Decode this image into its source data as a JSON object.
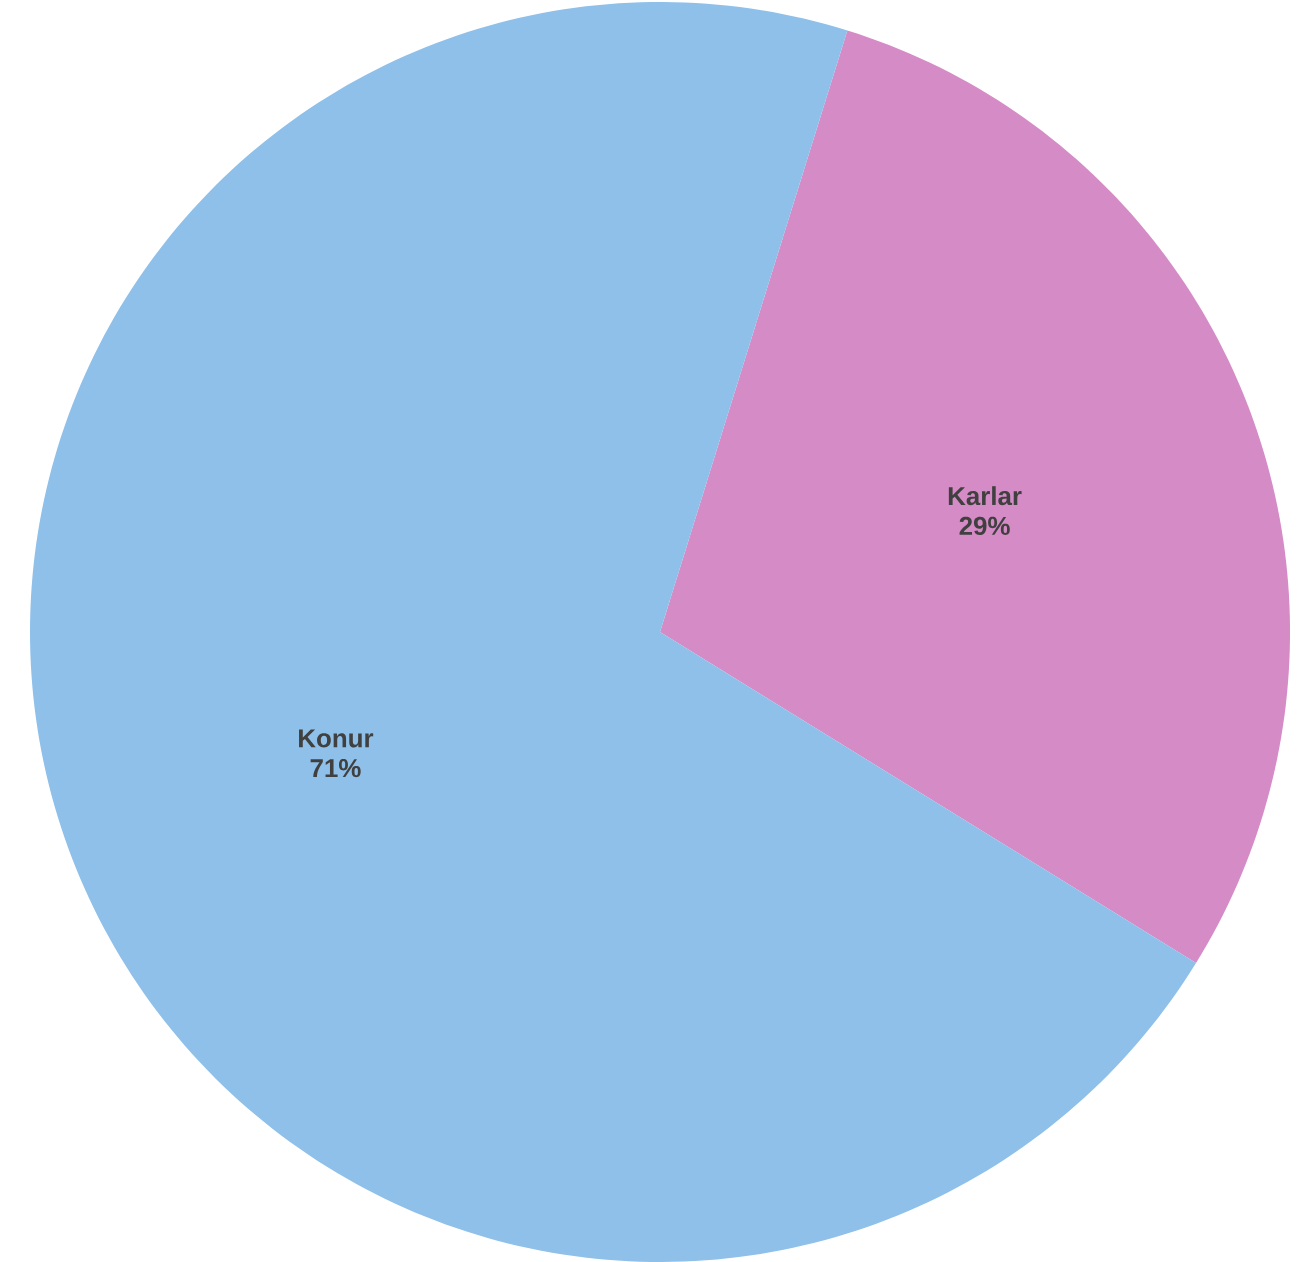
{
  "chart_data": {
    "type": "pie",
    "categories": [
      "Karlar",
      "Konur"
    ],
    "values": [
      29,
      71
    ],
    "value_labels": [
      "29%",
      "71%"
    ],
    "colors": [
      "#d48bc6",
      "#8ec0ea"
    ]
  }
}
